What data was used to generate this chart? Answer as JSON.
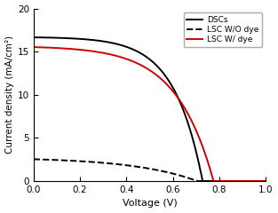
{
  "title": "",
  "xlabel": "Voltage (V)",
  "ylabel": "Current density (mA/cm²)",
  "xlim": [
    0.0,
    1.0
  ],
  "ylim": [
    0,
    20
  ],
  "xticks": [
    0.0,
    0.2,
    0.4,
    0.6,
    0.8,
    1.0
  ],
  "yticks": [
    0,
    5,
    10,
    15,
    20
  ],
  "legend": [
    "DSCs",
    "LSC W/O dye",
    "LSC W/ dye"
  ],
  "DSCs": {
    "color": "#000000",
    "linestyle": "solid",
    "linewidth": 1.4,
    "jsc": 16.7,
    "voc": 0.728,
    "ff": 0.76
  },
  "LSC_wo_dye": {
    "color": "#000000",
    "linestyle": "dashed",
    "linewidth": 1.4,
    "jsc": 2.75,
    "voc": 0.705,
    "ff": 0.62
  },
  "LSC_w_dye": {
    "color": "#cc0000",
    "linestyle": "solid",
    "linewidth": 1.4,
    "jsc": 15.65,
    "voc": 0.775,
    "ff": 0.73
  },
  "background_color": "#ffffff",
  "figure_size": [
    3.13,
    2.4
  ],
  "dpi": 100
}
